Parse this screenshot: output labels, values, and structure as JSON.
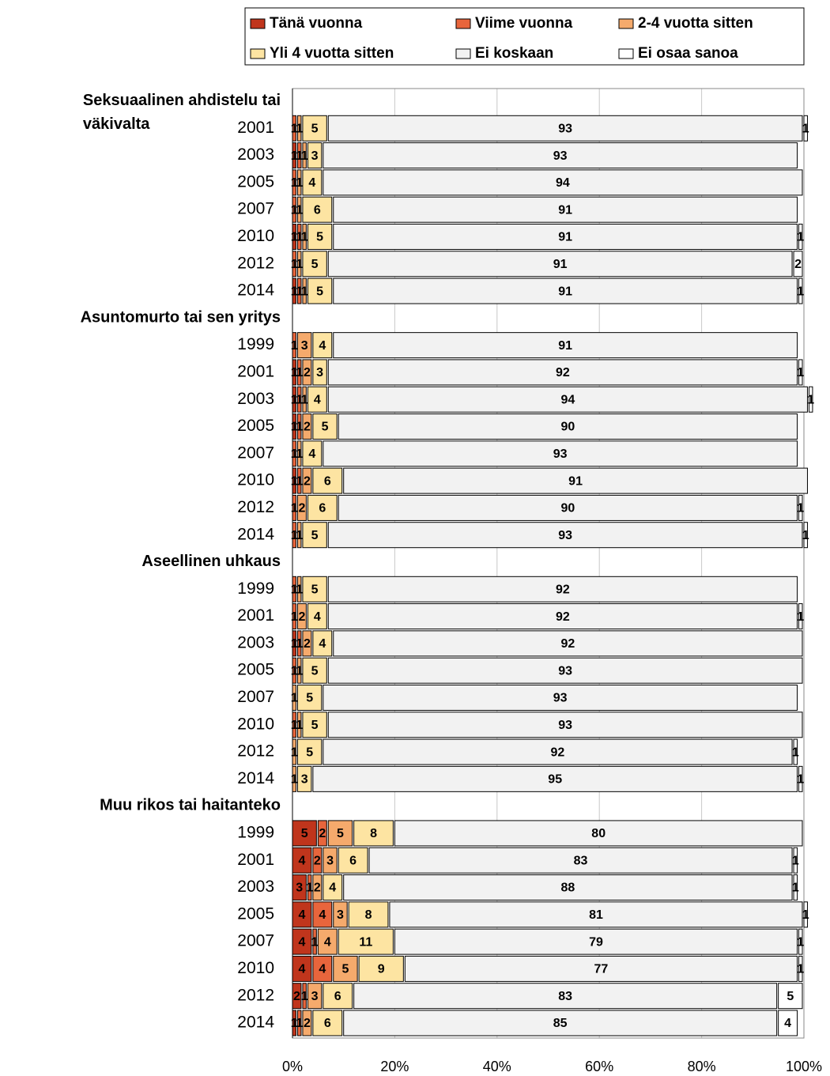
{
  "chart_data": {
    "type": "stacked_barh",
    "categories": [
      "Seksuaalinen ahdistelu tai väkivalta",
      "2001",
      "2003",
      "2005",
      "2007",
      "2010",
      "2012",
      "2014",
      "Asuntomurto tai sen yritys",
      "1999",
      "2001",
      "2003",
      "2005",
      "2007",
      "2010",
      "2012",
      "2014",
      "Aseellinen uhkaus",
      "1999",
      "2001",
      "2003",
      "2005",
      "2007",
      "2010",
      "2012",
      "2014",
      "Muu rikos tai haitanteko",
      "1999",
      "2001",
      "2003",
      "2005",
      "2007",
      "2010",
      "2012",
      "2014"
    ],
    "series": [
      {
        "name": "Tänä vuonna",
        "color": "#c0351c",
        "values": [
          null,
          0,
          1,
          0,
          0,
          1,
          0,
          1,
          null,
          0,
          1,
          1,
          1,
          0,
          1,
          0,
          0,
          null,
          0,
          0,
          1,
          0,
          0,
          0,
          0,
          0,
          null,
          5,
          4,
          3,
          4,
          4,
          4,
          2,
          1
        ]
      },
      {
        "name": "Viime vuonna",
        "color": "#e8653c",
        "values": [
          null,
          1,
          1,
          1,
          1,
          1,
          1,
          1,
          null,
          1,
          1,
          1,
          1,
          1,
          1,
          1,
          1,
          null,
          1,
          1,
          1,
          1,
          0,
          1,
          0,
          0,
          null,
          2,
          2,
          1,
          4,
          1,
          4,
          1,
          1
        ]
      },
      {
        "name": "2-4 vuotta sitten",
        "color": "#f5aa6c",
        "values": [
          null,
          1,
          1,
          1,
          1,
          1,
          1,
          1,
          null,
          3,
          2,
          1,
          2,
          1,
          2,
          2,
          1,
          null,
          1,
          2,
          2,
          1,
          1,
          1,
          1,
          1,
          null,
          5,
          3,
          2,
          3,
          4,
          5,
          3,
          2
        ]
      },
      {
        "name": "Yli 4 vuotta sitten",
        "color": "#fde4a2",
        "values": [
          null,
          5,
          3,
          4,
          6,
          5,
          5,
          5,
          null,
          4,
          3,
          4,
          5,
          4,
          6,
          6,
          5,
          null,
          5,
          4,
          4,
          5,
          5,
          5,
          5,
          3,
          null,
          8,
          6,
          4,
          8,
          11,
          9,
          6,
          6
        ]
      },
      {
        "name": "Ei koskaan",
        "color": "#f2f2f2",
        "values": [
          null,
          93,
          93,
          94,
          91,
          91,
          91,
          91,
          null,
          91,
          92,
          94,
          90,
          93,
          91,
          90,
          93,
          null,
          92,
          92,
          92,
          93,
          93,
          93,
          92,
          95,
          null,
          80,
          83,
          88,
          81,
          79,
          77,
          83,
          85
        ]
      },
      {
        "name": "Ei osaa sanoa",
        "color": "#ffffff",
        "values": [
          null,
          1,
          0,
          0,
          0,
          1,
          2,
          1,
          null,
          0,
          1,
          1,
          0,
          0,
          0,
          1,
          1,
          null,
          0,
          1,
          0,
          0,
          0,
          0,
          1,
          1,
          null,
          0,
          1,
          1,
          1,
          1,
          1,
          5,
          4
        ]
      }
    ],
    "xlim": [
      0,
      100
    ],
    "xticks": [
      {
        "value": 0,
        "label": "0%"
      },
      {
        "value": 20,
        "label": "20%"
      },
      {
        "value": 40,
        "label": "40%"
      },
      {
        "value": 60,
        "label": "60%"
      },
      {
        "value": 80,
        "label": "80%"
      },
      {
        "value": 100,
        "label": "100%"
      }
    ],
    "grid": true,
    "legend": "top"
  }
}
